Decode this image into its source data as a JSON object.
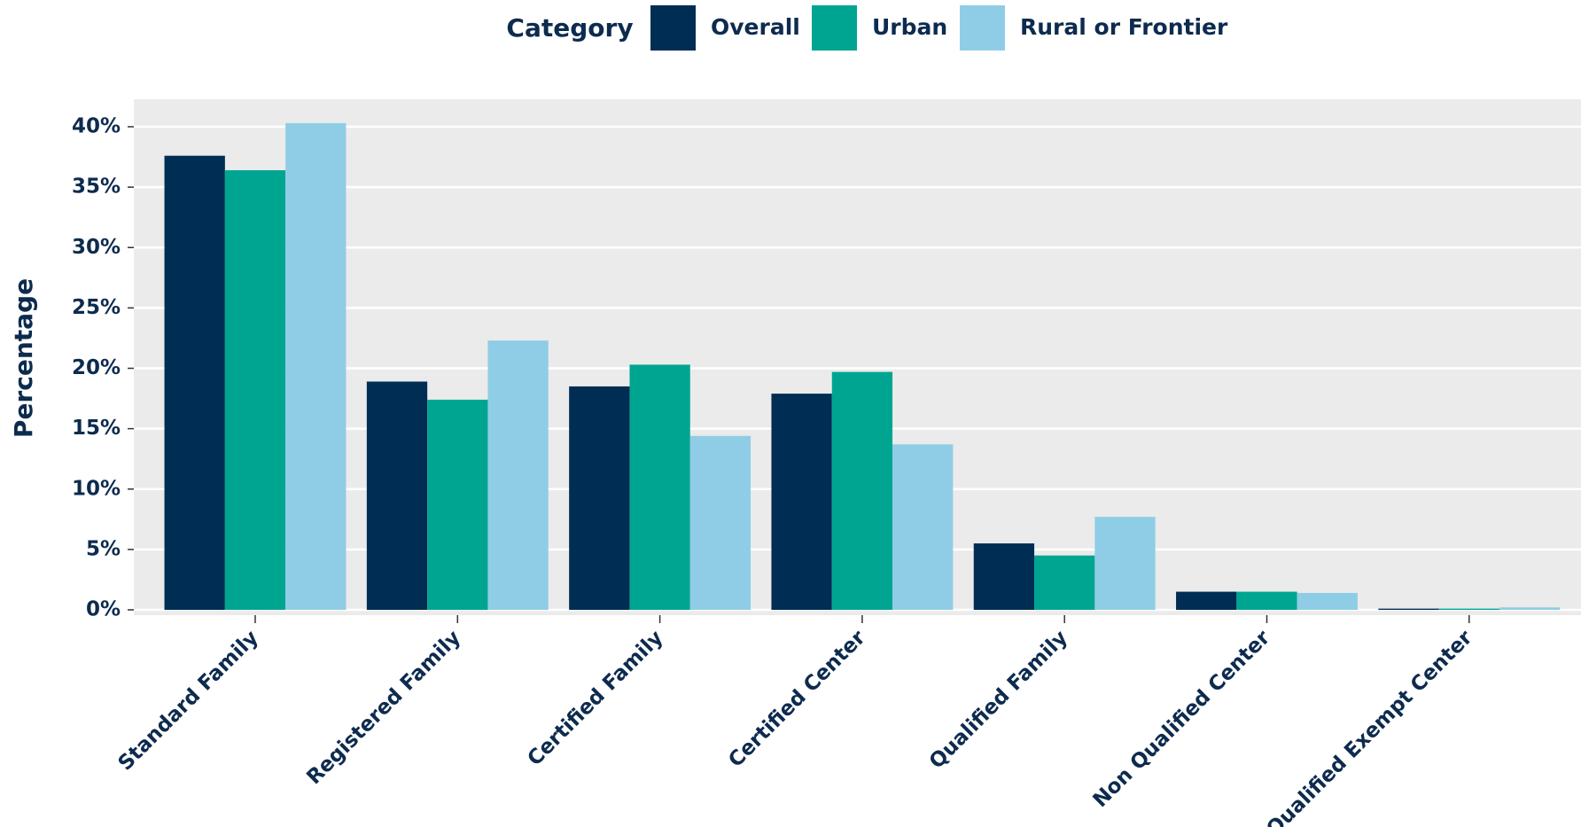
{
  "chart_data": {
    "type": "bar",
    "legend_title": "Category",
    "y_label": "Percentage",
    "categories": [
      "Standard Family",
      "Registered Family",
      "Certified Family",
      "Certified Center",
      "Qualified Family",
      "Non Qualified Center",
      "Qualified Exempt Center"
    ],
    "series": [
      {
        "name": "Overall",
        "color": "#002d54",
        "values": [
          37.6,
          18.9,
          18.5,
          17.9,
          5.5,
          1.5,
          0.1
        ]
      },
      {
        "name": "Urban",
        "color": "#00a591",
        "values": [
          36.4,
          17.4,
          20.3,
          19.7,
          4.5,
          1.5,
          0.1
        ]
      },
      {
        "name": "Rural or Frontier",
        "color": "#8fcde6",
        "values": [
          40.3,
          22.3,
          14.4,
          13.7,
          7.7,
          1.4,
          0.2
        ]
      }
    ],
    "ylim": [
      0,
      40
    ],
    "yticks": [
      {
        "value": 0,
        "label": "0%"
      },
      {
        "value": 5,
        "label": "5%"
      },
      {
        "value": 10,
        "label": "10%"
      },
      {
        "value": 15,
        "label": "15%"
      },
      {
        "value": 20,
        "label": "20%"
      },
      {
        "value": 25,
        "label": "25%"
      },
      {
        "value": 30,
        "label": "30%"
      },
      {
        "value": 35,
        "label": "35%"
      },
      {
        "value": 40,
        "label": "40%"
      }
    ],
    "grid": true,
    "legend_position": "top"
  }
}
